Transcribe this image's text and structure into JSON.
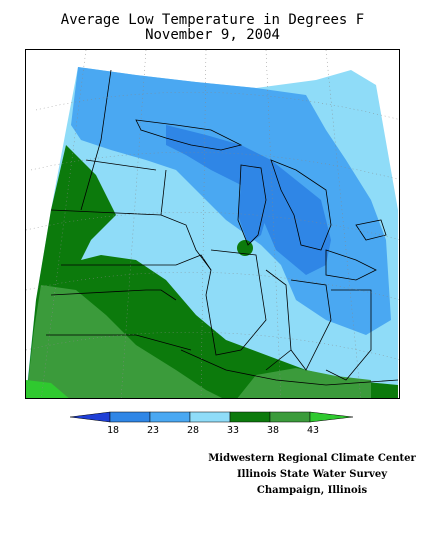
{
  "title_line1": "Average Low Temperature in Degrees F",
  "title_line2": "November 9, 2004",
  "legend": {
    "ticks": [
      "18",
      "23",
      "28",
      "33",
      "38",
      "43"
    ],
    "colors": [
      "#1f3fd6",
      "#2f86e6",
      "#4aa8f2",
      "#8fdcf8",
      "#0c7a0c",
      "#3b9b3b",
      "#2fc92f"
    ]
  },
  "credits": {
    "line1": "Midwestern Regional Climate Center",
    "line2": "Illinois State Water Survey",
    "line3": "Champaign, Illinois"
  },
  "map": {
    "colors": {
      "band_28_33": "#8fdcf8",
      "band_23_28": "#4aa8f2",
      "band_18_23": "#2f86e6",
      "band_33_38": "#0c7a0c",
      "band_38_43": "#3b9b3b",
      "band_43_plus": "#2fc92f"
    }
  }
}
